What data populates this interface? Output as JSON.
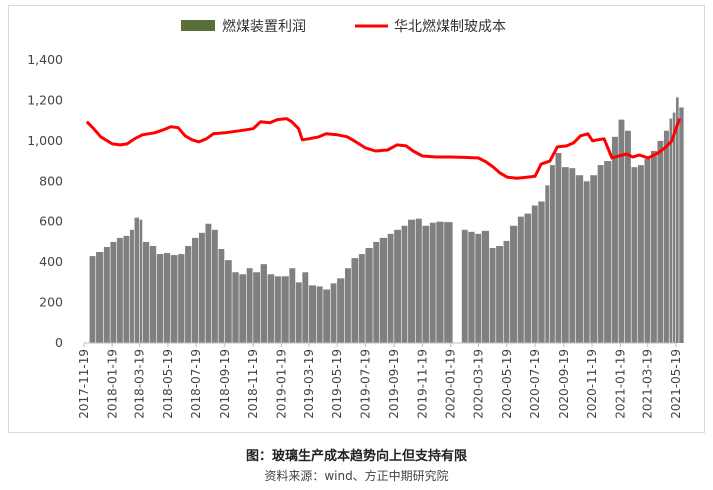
{
  "chart_data": {
    "type": "bar+line",
    "ylim": [
      0,
      1400
    ],
    "y_ticks": [
      "0",
      "200",
      "400",
      "600",
      "800",
      "1,000",
      "1,200",
      "1,400"
    ],
    "x_ticks": [
      "2017-11-19",
      "2018-01-19",
      "2018-03-19",
      "2018-05-19",
      "2018-07-19",
      "2018-09-19",
      "2018-11-19",
      "2019-01-19",
      "2019-03-19",
      "2019-05-19",
      "2019-07-19",
      "2019-09-19",
      "2019-11-19",
      "2020-01-19",
      "2020-03-19",
      "2020-05-19",
      "2020-07-19",
      "2020-09-19",
      "2020-11-19",
      "2021-01-19",
      "2021-03-19",
      "2021-05-19"
    ],
    "x_range": [
      "2017-11-19",
      "2021-05-19"
    ],
    "legend": {
      "placement": "top-center"
    },
    "grid": false,
    "series": [
      {
        "name": "燃煤装置利润",
        "kind": "bar",
        "color": "#808080",
        "legend_color": "#5a6e3a",
        "points": [
          [
            "2017-12-01",
            430
          ],
          [
            "2017-12-15",
            450
          ],
          [
            "2018-01-01",
            475
          ],
          [
            "2018-01-15",
            500
          ],
          [
            "2018-01-29",
            520
          ],
          [
            "2018-02-12",
            530
          ],
          [
            "2018-02-26",
            560
          ],
          [
            "2018-03-08",
            620
          ],
          [
            "2018-03-19",
            610
          ],
          [
            "2018-03-26",
            500
          ],
          [
            "2018-04-10",
            480
          ],
          [
            "2018-04-25",
            440
          ],
          [
            "2018-05-10",
            445
          ],
          [
            "2018-05-25",
            435
          ],
          [
            "2018-06-10",
            440
          ],
          [
            "2018-06-25",
            480
          ],
          [
            "2018-07-10",
            520
          ],
          [
            "2018-07-25",
            545
          ],
          [
            "2018-08-08",
            590
          ],
          [
            "2018-08-22",
            560
          ],
          [
            "2018-09-05",
            465
          ],
          [
            "2018-09-19",
            410
          ],
          [
            "2018-10-05",
            350
          ],
          [
            "2018-10-20",
            340
          ],
          [
            "2018-11-05",
            370
          ],
          [
            "2018-11-19",
            350
          ],
          [
            "2018-12-05",
            390
          ],
          [
            "2018-12-20",
            340
          ],
          [
            "2019-01-05",
            330
          ],
          [
            "2019-01-19",
            330
          ],
          [
            "2019-02-05",
            370
          ],
          [
            "2019-02-19",
            300
          ],
          [
            "2019-03-05",
            350
          ],
          [
            "2019-03-19",
            285
          ],
          [
            "2019-04-05",
            280
          ],
          [
            "2019-04-19",
            265
          ],
          [
            "2019-05-05",
            295
          ],
          [
            "2019-05-19",
            320
          ],
          [
            "2019-06-05",
            370
          ],
          [
            "2019-06-19",
            420
          ],
          [
            "2019-07-05",
            440
          ],
          [
            "2019-07-19",
            470
          ],
          [
            "2019-08-05",
            500
          ],
          [
            "2019-08-19",
            520
          ],
          [
            "2019-09-05",
            540
          ],
          [
            "2019-09-19",
            560
          ],
          [
            "2019-10-05",
            580
          ],
          [
            "2019-10-19",
            610
          ],
          [
            "2019-11-05",
            615
          ],
          [
            "2019-11-19",
            580
          ],
          [
            "2019-12-05",
            595
          ],
          [
            "2019-12-19",
            600
          ],
          [
            "2020-01-05",
            598
          ],
          [
            "2020-02-12",
            560
          ],
          [
            "2020-02-26",
            550
          ],
          [
            "2020-03-12",
            540
          ],
          [
            "2020-03-26",
            555
          ],
          [
            "2020-04-12",
            470
          ],
          [
            "2020-04-26",
            480
          ],
          [
            "2020-05-12",
            505
          ],
          [
            "2020-05-26",
            580
          ],
          [
            "2020-06-12",
            625
          ],
          [
            "2020-06-26",
            640
          ],
          [
            "2020-07-12",
            680
          ],
          [
            "2020-07-26",
            700
          ],
          [
            "2020-08-10",
            780
          ],
          [
            "2020-08-20",
            880
          ],
          [
            "2020-09-01",
            940
          ],
          [
            "2020-09-15",
            870
          ],
          [
            "2020-10-01",
            865
          ],
          [
            "2020-10-15",
            830
          ],
          [
            "2020-11-01",
            800
          ],
          [
            "2020-11-15",
            830
          ],
          [
            "2020-12-01",
            880
          ],
          [
            "2020-12-15",
            900
          ],
          [
            "2021-01-01",
            1020
          ],
          [
            "2021-01-15",
            1105
          ],
          [
            "2021-01-29",
            1050
          ],
          [
            "2021-02-12",
            870
          ],
          [
            "2021-02-26",
            880
          ],
          [
            "2021-03-12",
            910
          ],
          [
            "2021-03-26",
            950
          ],
          [
            "2021-04-09",
            1000
          ],
          [
            "2021-04-23",
            1050
          ],
          [
            "2021-05-05",
            1110
          ],
          [
            "2021-05-12",
            1140
          ],
          [
            "2021-05-19",
            1215
          ],
          [
            "2021-05-26",
            1165
          ]
        ]
      },
      {
        "name": "华北燃煤制玻成本",
        "kind": "line",
        "color": "#ff0000",
        "points": [
          [
            "2017-11-25",
            1095
          ],
          [
            "2017-12-10",
            1060
          ],
          [
            "2017-12-25",
            1020
          ],
          [
            "2018-01-19",
            985
          ],
          [
            "2018-02-05",
            980
          ],
          [
            "2018-02-20",
            985
          ],
          [
            "2018-03-08",
            1010
          ],
          [
            "2018-03-25",
            1030
          ],
          [
            "2018-04-20",
            1040
          ],
          [
            "2018-05-10",
            1055
          ],
          [
            "2018-05-25",
            1070
          ],
          [
            "2018-06-10",
            1065
          ],
          [
            "2018-06-25",
            1025
          ],
          [
            "2018-07-10",
            1005
          ],
          [
            "2018-07-25",
            995
          ],
          [
            "2018-08-10",
            1010
          ],
          [
            "2018-08-25",
            1035
          ],
          [
            "2018-09-19",
            1040
          ],
          [
            "2018-10-20",
            1050
          ],
          [
            "2018-11-19",
            1060
          ],
          [
            "2018-12-05",
            1095
          ],
          [
            "2018-12-25",
            1090
          ],
          [
            "2019-01-10",
            1105
          ],
          [
            "2019-01-30",
            1110
          ],
          [
            "2019-02-10",
            1095
          ],
          [
            "2019-02-25",
            1060
          ],
          [
            "2019-03-05",
            1005
          ],
          [
            "2019-03-19",
            1010
          ],
          [
            "2019-04-10",
            1020
          ],
          [
            "2019-04-25",
            1035
          ],
          [
            "2019-05-19",
            1030
          ],
          [
            "2019-06-10",
            1020
          ],
          [
            "2019-06-25",
            1000
          ],
          [
            "2019-07-19",
            965
          ],
          [
            "2019-08-10",
            950
          ],
          [
            "2019-09-05",
            955
          ],
          [
            "2019-09-25",
            980
          ],
          [
            "2019-10-15",
            975
          ],
          [
            "2019-10-30",
            950
          ],
          [
            "2019-11-19",
            925
          ],
          [
            "2019-12-19",
            920
          ],
          [
            "2020-01-19",
            920
          ],
          [
            "2020-02-19",
            918
          ],
          [
            "2020-03-19",
            915
          ],
          [
            "2020-04-05",
            895
          ],
          [
            "2020-04-20",
            870
          ],
          [
            "2020-05-05",
            840
          ],
          [
            "2020-05-20",
            820
          ],
          [
            "2020-06-10",
            815
          ],
          [
            "2020-07-01",
            820
          ],
          [
            "2020-07-19",
            825
          ],
          [
            "2020-08-01",
            885
          ],
          [
            "2020-08-20",
            900
          ],
          [
            "2020-09-05",
            970
          ],
          [
            "2020-09-25",
            975
          ],
          [
            "2020-10-10",
            990
          ],
          [
            "2020-10-25",
            1025
          ],
          [
            "2020-11-10",
            1035
          ],
          [
            "2020-11-20",
            1000
          ],
          [
            "2020-12-01",
            1005
          ],
          [
            "2020-12-15",
            1010
          ],
          [
            "2021-01-01",
            915
          ],
          [
            "2021-01-15",
            925
          ],
          [
            "2021-02-01",
            935
          ],
          [
            "2021-02-15",
            920
          ],
          [
            "2021-03-01",
            930
          ],
          [
            "2021-03-20",
            915
          ],
          [
            "2021-04-10",
            940
          ],
          [
            "2021-04-25",
            965
          ],
          [
            "2021-05-10",
            1000
          ],
          [
            "2021-05-19",
            1060
          ],
          [
            "2021-05-27",
            1110
          ]
        ]
      }
    ]
  },
  "caption": {
    "title": "图：玻璃生产成本趋势向上但支持有限",
    "source": "资料来源：wind、方正中期研究院"
  }
}
